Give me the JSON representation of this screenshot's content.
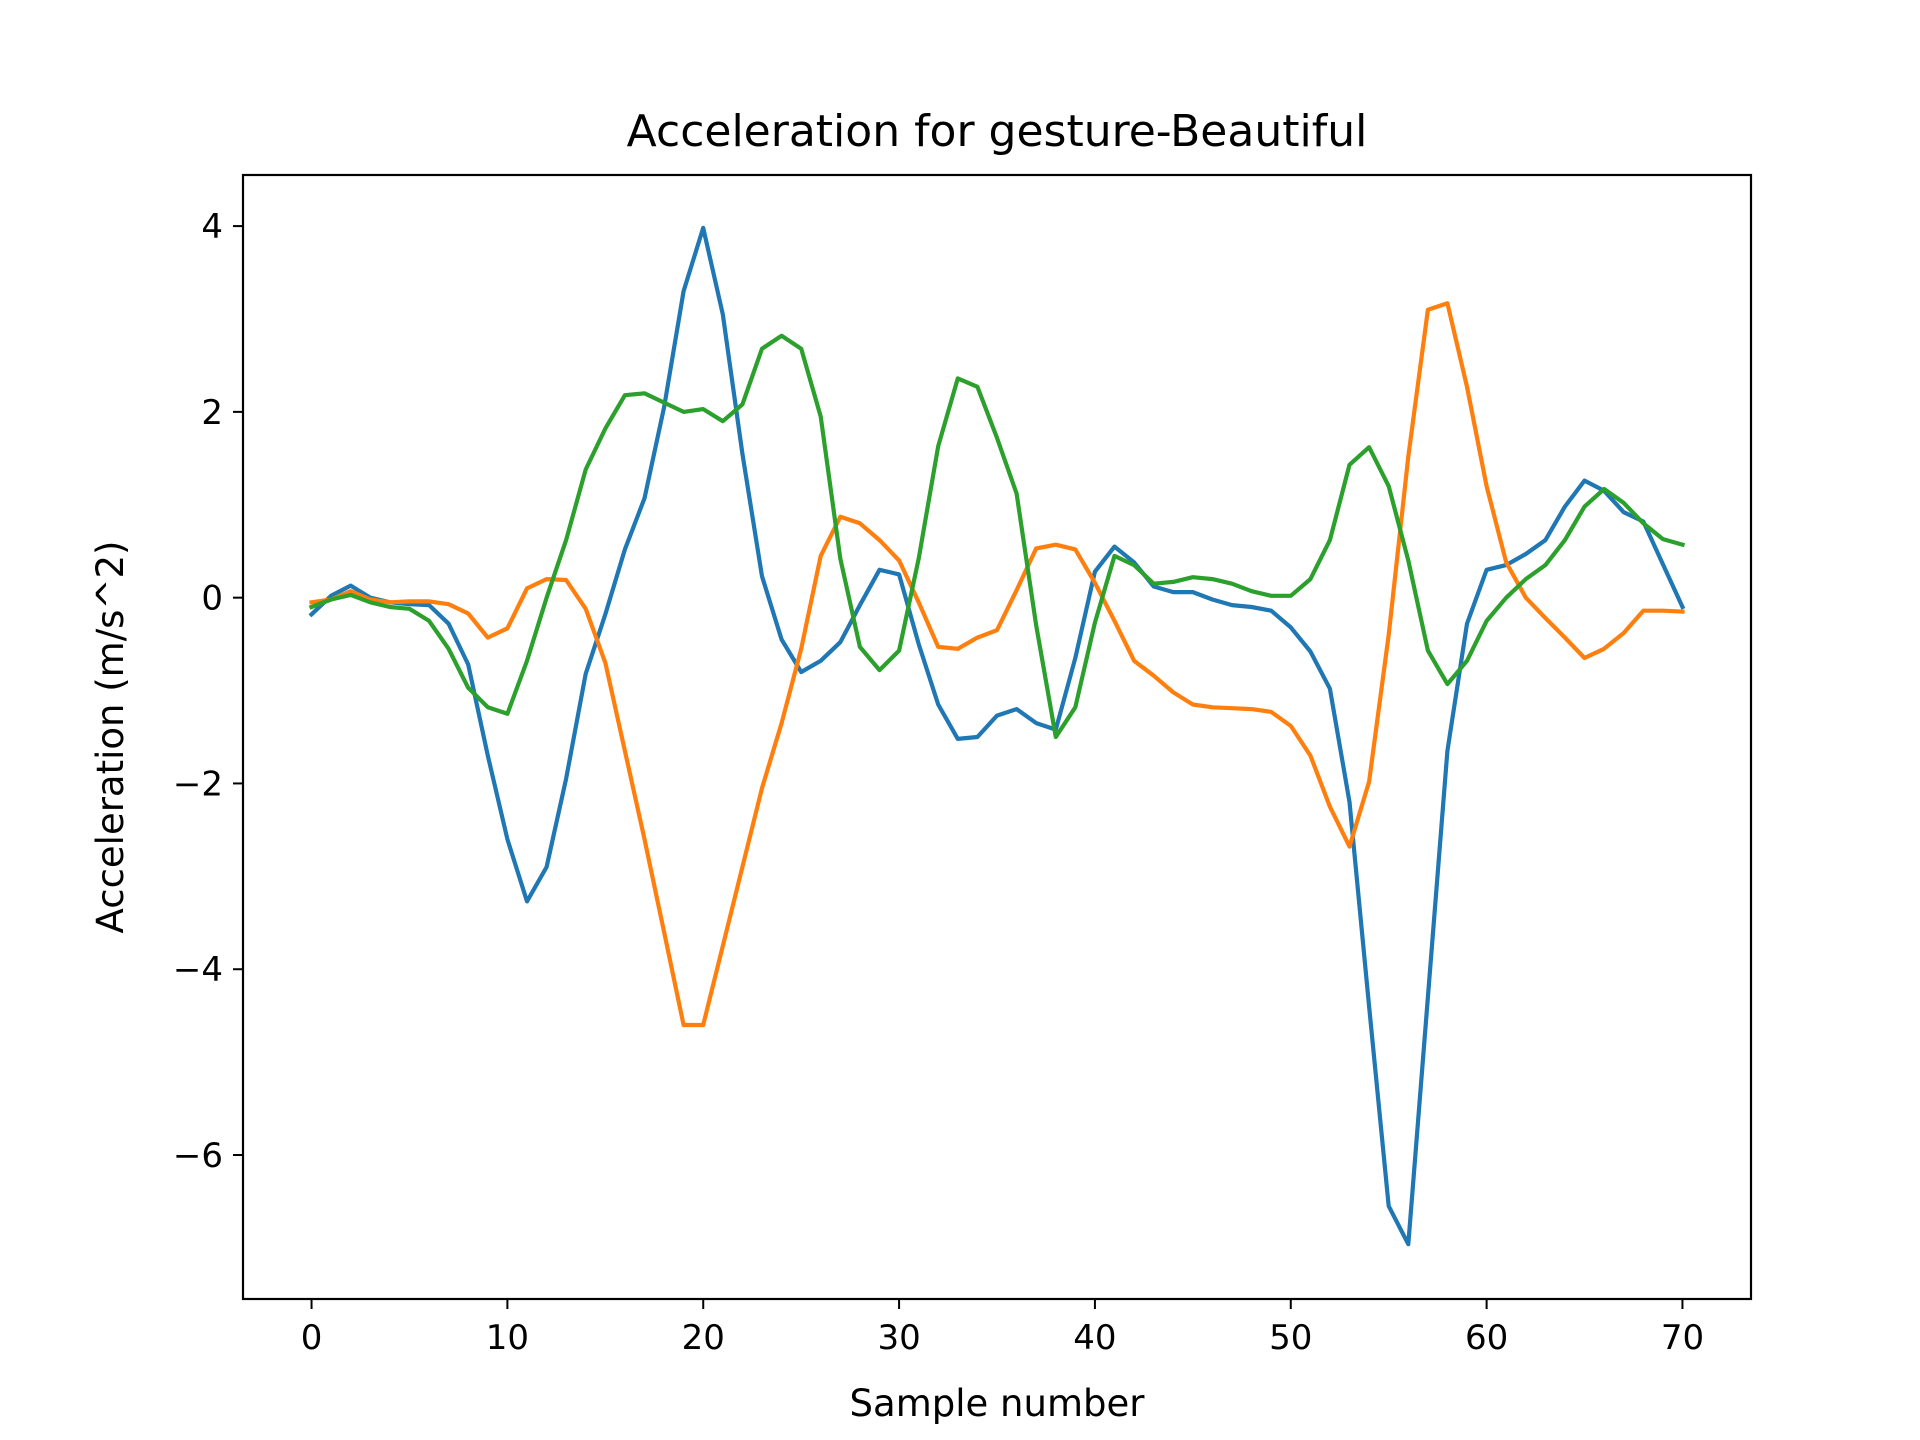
{
  "chart_data": {
    "type": "line",
    "title": "Acceleration for gesture-Beautiful",
    "xlabel": "Sample number",
    "ylabel": "Acceleration (m/s^2)",
    "xlim": [
      -3.5,
      73.5
    ],
    "ylim": [
      -7.55,
      4.55
    ],
    "x_ticks": [
      0,
      10,
      20,
      30,
      40,
      50,
      60,
      70
    ],
    "x_tick_labels": [
      "0",
      "10",
      "20",
      "30",
      "40",
      "50",
      "60",
      "70"
    ],
    "y_ticks": [
      4,
      2,
      0,
      -2,
      -4,
      -6
    ],
    "y_tick_labels": [
      "4",
      "2",
      "0",
      "−2",
      "−4",
      "−6"
    ],
    "grid": false,
    "x": [
      0,
      1,
      2,
      3,
      4,
      5,
      6,
      7,
      8,
      9,
      10,
      11,
      12,
      13,
      14,
      15,
      16,
      17,
      18,
      19,
      20,
      21,
      22,
      23,
      24,
      25,
      26,
      27,
      28,
      29,
      30,
      31,
      32,
      33,
      34,
      35,
      36,
      37,
      38,
      39,
      40,
      41,
      42,
      43,
      44,
      45,
      46,
      47,
      48,
      49,
      50,
      51,
      52,
      53,
      54,
      55,
      56,
      57,
      58,
      59,
      60,
      61,
      62,
      63,
      64,
      65,
      66,
      67,
      68,
      69,
      70
    ],
    "series": [
      {
        "color": "#1f77b4",
        "values": [
          -0.18,
          0.02,
          0.13,
          0.0,
          -0.05,
          -0.07,
          -0.08,
          -0.28,
          -0.72,
          -1.7,
          -2.6,
          -3.27,
          -2.9,
          -1.95,
          -0.82,
          -0.18,
          0.52,
          1.07,
          2.05,
          3.3,
          3.98,
          3.05,
          1.55,
          0.23,
          -0.45,
          -0.8,
          -0.68,
          -0.48,
          -0.08,
          0.3,
          0.25,
          -0.5,
          -1.15,
          -1.52,
          -1.5,
          -1.27,
          -1.2,
          -1.35,
          -1.42,
          -0.65,
          0.28,
          0.55,
          0.38,
          0.12,
          0.06,
          0.06,
          -0.02,
          -0.08,
          -0.1,
          -0.14,
          -0.32,
          -0.58,
          -0.98,
          -2.2,
          -4.4,
          -6.55,
          -6.96,
          -4.3,
          -1.65,
          -0.28,
          0.3,
          0.35,
          0.47,
          0.62,
          0.98,
          1.26,
          1.15,
          0.92,
          0.82,
          0.36,
          -0.1
        ]
      },
      {
        "color": "#ff7f0e",
        "values": [
          -0.05,
          -0.02,
          0.07,
          -0.02,
          -0.05,
          -0.04,
          -0.04,
          -0.07,
          -0.17,
          -0.43,
          -0.33,
          0.1,
          0.2,
          0.19,
          -0.12,
          -0.7,
          -1.65,
          -2.6,
          -3.6,
          -4.6,
          -4.6,
          -3.75,
          -2.9,
          -2.05,
          -1.35,
          -0.55,
          0.45,
          0.87,
          0.8,
          0.62,
          0.4,
          -0.05,
          -0.53,
          -0.55,
          -0.43,
          -0.35,
          0.08,
          0.53,
          0.57,
          0.52,
          0.16,
          -0.25,
          -0.68,
          -0.84,
          -1.02,
          -1.15,
          -1.18,
          -1.19,
          -1.2,
          -1.23,
          -1.38,
          -1.7,
          -2.25,
          -2.68,
          -1.98,
          -0.4,
          1.52,
          3.1,
          3.17,
          2.27,
          1.2,
          0.38,
          0.0,
          -0.22,
          -0.43,
          -0.65,
          -0.55,
          -0.38,
          -0.14,
          -0.14,
          -0.15
        ]
      },
      {
        "color": "#2ca02c",
        "values": [
          -0.1,
          -0.02,
          0.03,
          -0.05,
          -0.1,
          -0.12,
          -0.25,
          -0.55,
          -0.97,
          -1.18,
          -1.25,
          -0.68,
          0.0,
          0.62,
          1.38,
          1.82,
          2.18,
          2.2,
          2.1,
          2.0,
          2.03,
          1.9,
          2.08,
          2.68,
          2.82,
          2.68,
          1.95,
          0.42,
          -0.53,
          -0.78,
          -0.57,
          0.42,
          1.63,
          2.36,
          2.27,
          1.72,
          1.12,
          -0.3,
          -1.5,
          -1.18,
          -0.27,
          0.45,
          0.35,
          0.15,
          0.17,
          0.22,
          0.2,
          0.15,
          0.07,
          0.02,
          0.02,
          0.2,
          0.62,
          1.43,
          1.62,
          1.2,
          0.4,
          -0.57,
          -0.93,
          -0.68,
          -0.25,
          0.0,
          0.2,
          0.35,
          0.62,
          0.98,
          1.17,
          1.02,
          0.8,
          0.63,
          0.57
        ]
      }
    ]
  }
}
